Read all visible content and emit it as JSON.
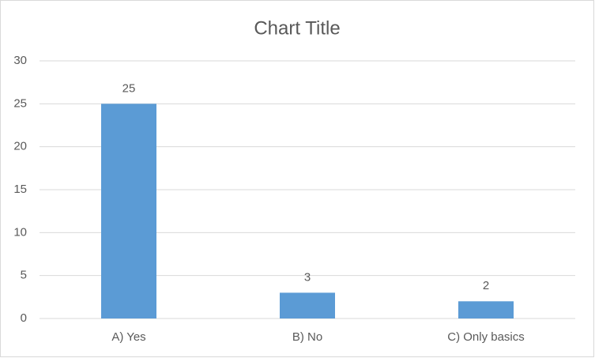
{
  "chart_data": {
    "type": "bar",
    "title": "Chart Title",
    "categories": [
      "A) Yes",
      "B) No",
      "C) Only basics"
    ],
    "values": [
      25,
      3,
      2
    ],
    "color": "#5b9bd5",
    "ylim": [
      0,
      30
    ],
    "yticks": [
      0,
      5,
      10,
      15,
      20,
      25,
      30
    ],
    "grid": true,
    "data_labels": true
  }
}
